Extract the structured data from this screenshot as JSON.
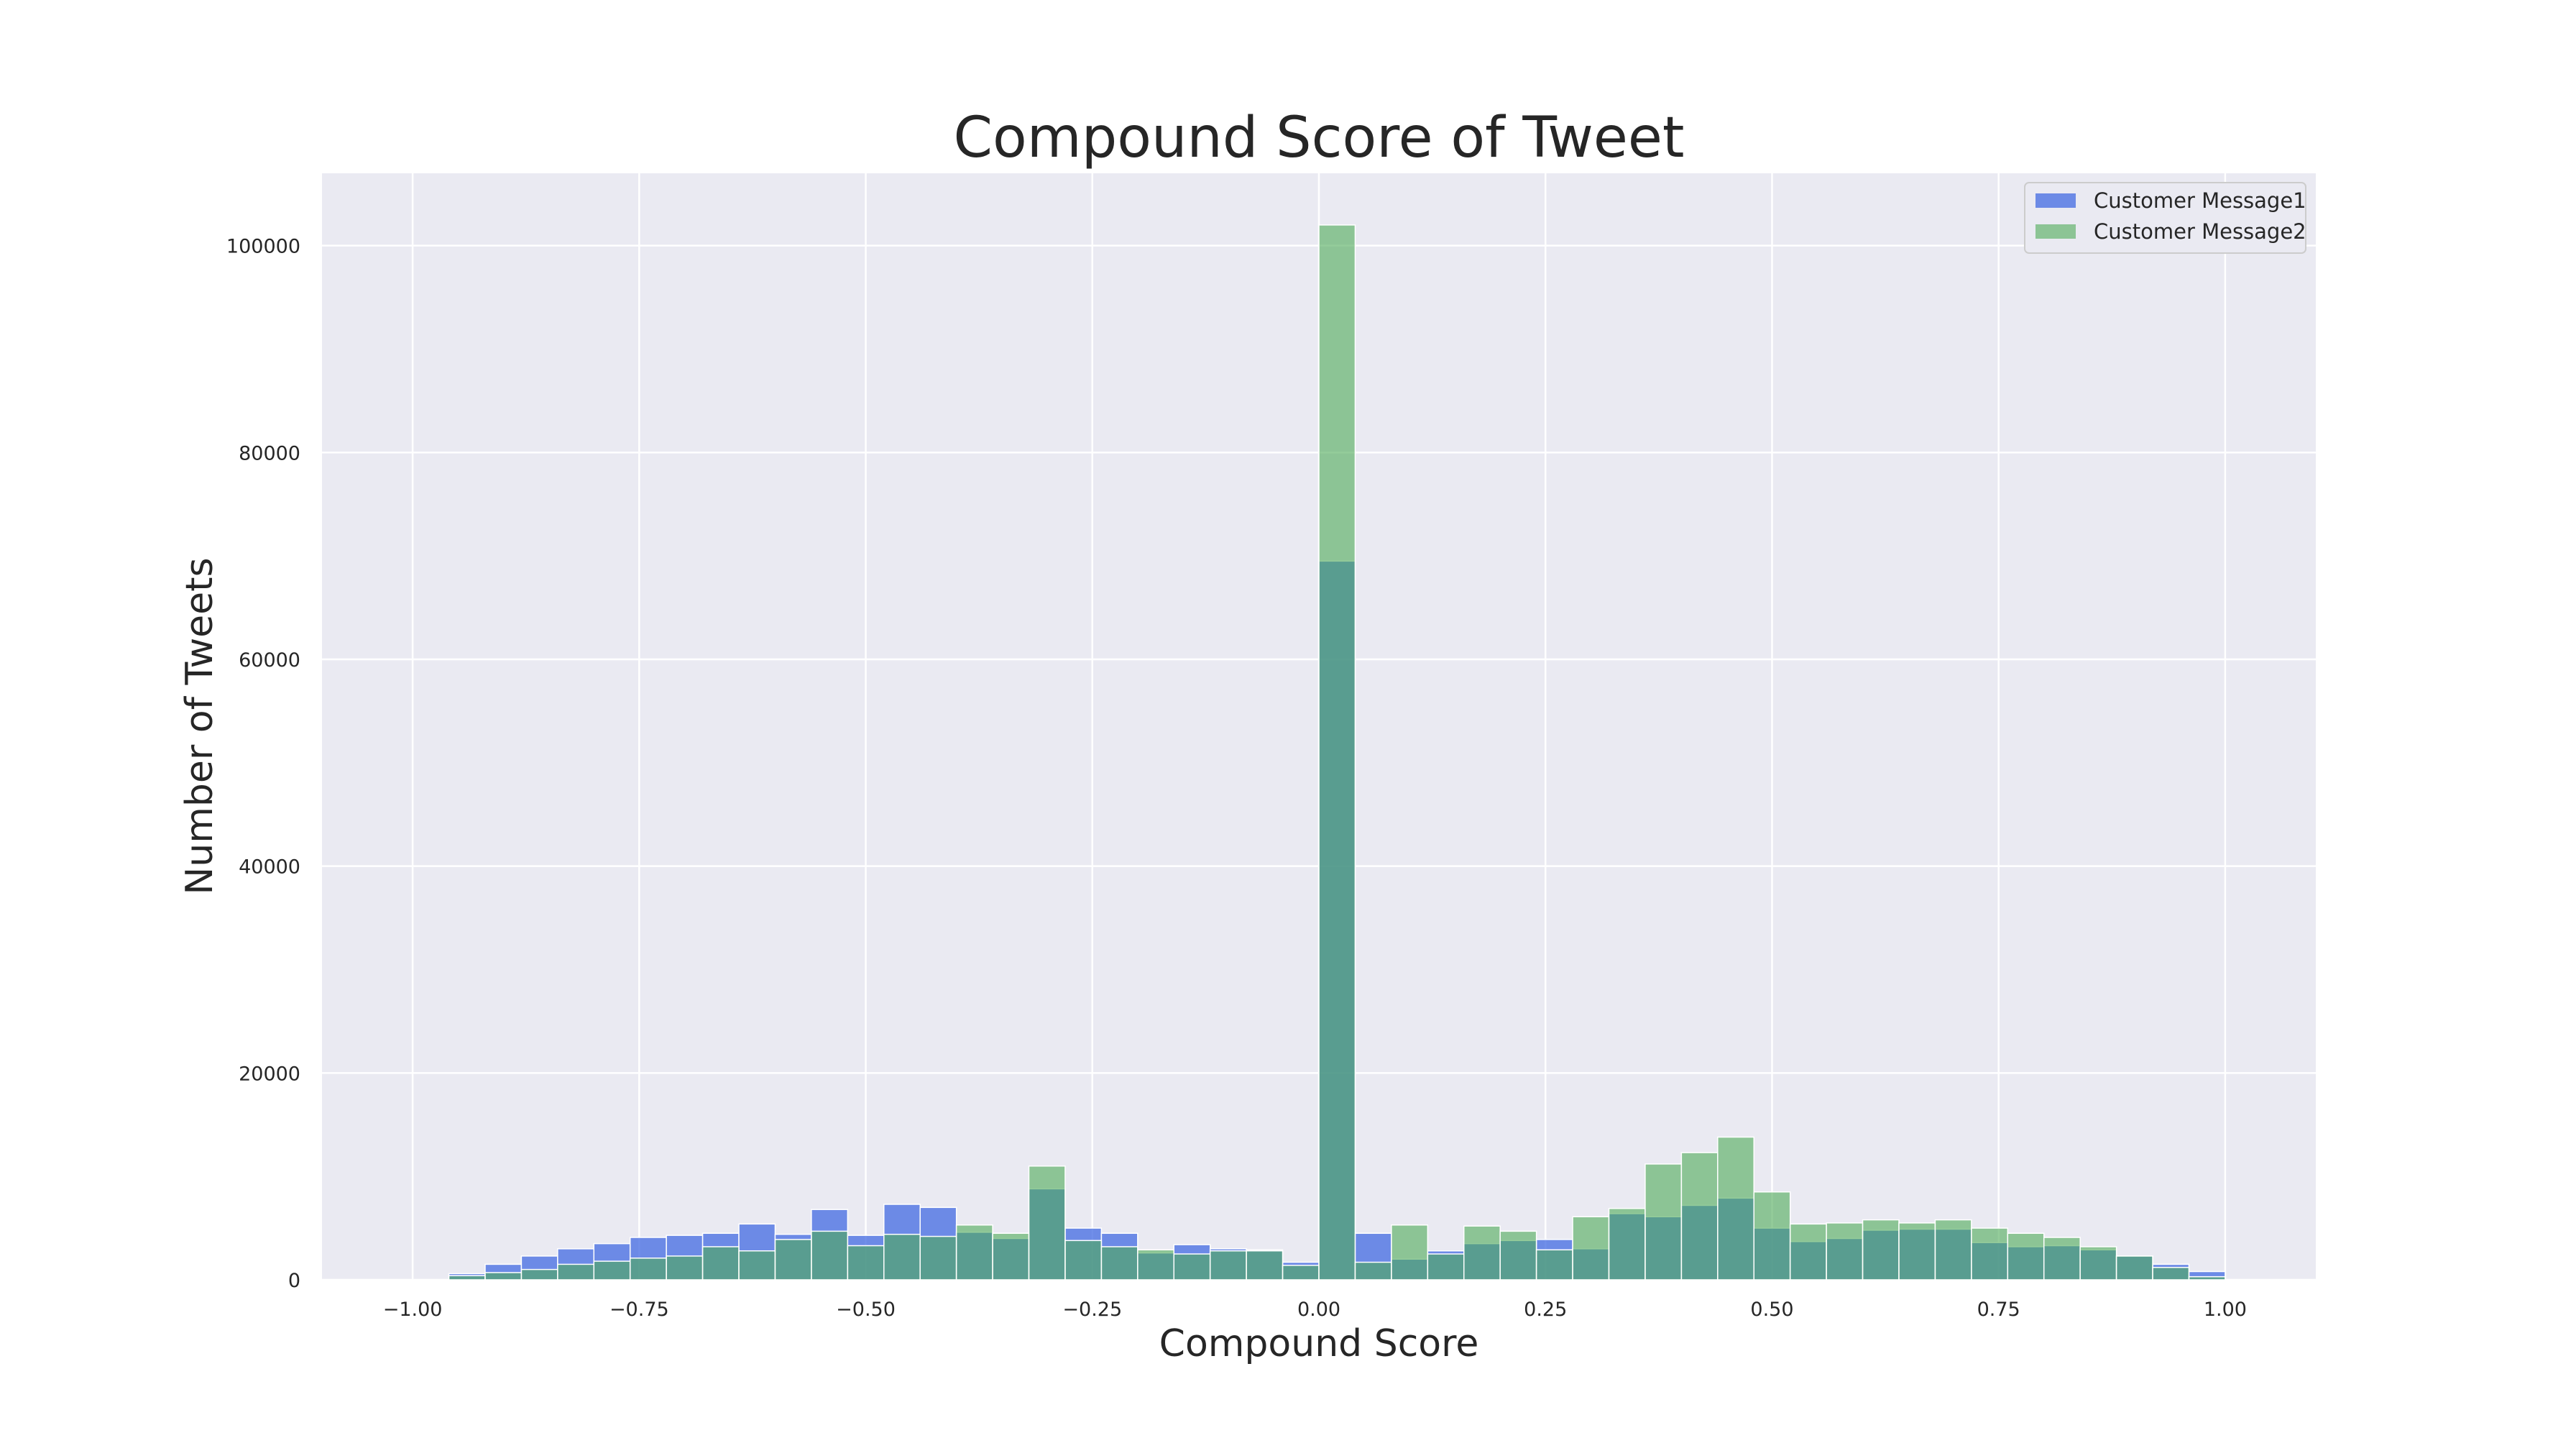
{
  "chart_data": {
    "type": "bar",
    "title": "Compound Score of Tweet",
    "xlabel": "Compound Score",
    "ylabel": "Number of Tweets",
    "xlim": [
      -1.1,
      1.1
    ],
    "ylim": [
      0,
      107000
    ],
    "grid": true,
    "legend_position": "top-right",
    "x_ticks": [
      -1.0,
      -0.75,
      -0.5,
      -0.25,
      0.0,
      0.25,
      0.5,
      0.75,
      1.0
    ],
    "x_tick_labels": [
      "−1.00",
      "−0.75",
      "−0.50",
      "−0.25",
      "0.00",
      "0.25",
      "0.50",
      "0.75",
      "1.00"
    ],
    "y_ticks": [
      0,
      20000,
      40000,
      60000,
      80000,
      100000
    ],
    "y_tick_labels": [
      "0",
      "20000",
      "40000",
      "60000",
      "80000",
      "100000"
    ],
    "bin_edges": [
      -0.96,
      -0.92,
      -0.88,
      -0.84,
      -0.8,
      -0.76,
      -0.72,
      -0.68,
      -0.64,
      -0.6,
      -0.56,
      -0.52,
      -0.48,
      -0.44,
      -0.4,
      -0.36,
      -0.32,
      -0.28,
      -0.24,
      -0.2,
      -0.16,
      -0.12,
      -0.08,
      -0.04,
      0.0,
      0.04,
      0.08,
      0.12,
      0.16,
      0.2,
      0.24,
      0.28,
      0.32,
      0.36,
      0.4,
      0.44,
      0.48,
      0.52,
      0.56,
      0.6,
      0.64,
      0.68,
      0.72,
      0.76,
      0.8,
      0.84,
      0.88,
      0.92,
      0.96,
      1.0
    ],
    "series": [
      {
        "name": "Customer Message1",
        "color": "#4169e1",
        "values": [
          600,
          1500,
          2300,
          3000,
          3500,
          4100,
          4300,
          4500,
          5400,
          4400,
          6800,
          4300,
          7300,
          7000,
          4600,
          4000,
          8800,
          5000,
          4500,
          2600,
          3400,
          3000,
          2900,
          1700,
          69500,
          4500,
          2000,
          2800,
          3500,
          3800,
          3900,
          3000,
          6400,
          6100,
          7200,
          7900,
          5000,
          3700,
          4000,
          4800,
          4900,
          4900,
          3600,
          3200,
          3300,
          2900,
          2300,
          1500,
          800,
          100
        ]
      },
      {
        "name": "Customer Message2",
        "color": "#4daa57",
        "values": [
          400,
          700,
          1000,
          1500,
          1800,
          2100,
          2300,
          3200,
          2800,
          3900,
          4700,
          3300,
          4400,
          4200,
          5300,
          4500,
          11000,
          3800,
          3200,
          2900,
          2500,
          2800,
          2800,
          1400,
          102000,
          1700,
          5300,
          2500,
          5200,
          4700,
          2900,
          6100,
          6900,
          11200,
          12300,
          13800,
          8500,
          5400,
          5500,
          5800,
          5500,
          5800,
          5000,
          4500,
          4100,
          3200,
          2300,
          1200,
          300,
          50
        ]
      }
    ]
  }
}
